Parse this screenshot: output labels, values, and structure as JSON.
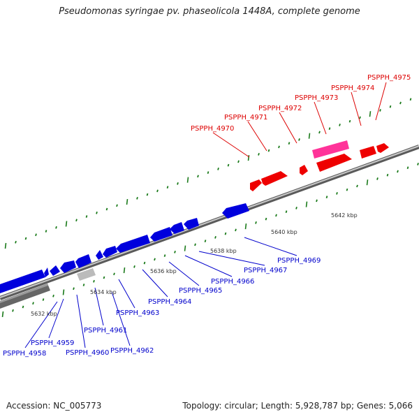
{
  "title": "Pseudomonas syringae pv. phaseolicola 1448A, complete genome",
  "footer": {
    "accession": "Accession: NC_005773",
    "summary": "Topology: circular; Length: 5,928,787 bp; Genes: 5,066"
  },
  "colors": {
    "forward_gene": "#ff0000",
    "forward_highlight": "#ff3399",
    "reverse_gene": "#0000ee",
    "pseudo_gene": "#bbbbbb",
    "backbone": "#777777",
    "tick": "#1a7a1a"
  },
  "scale_labels": [
    "5632 kbp",
    "5634 kbp",
    "5636 kbp",
    "5638 kbp",
    "5640 kbp",
    "5642 kbp"
  ],
  "forward_labels": [
    "PSPPH_4970",
    "PSPPH_4971",
    "PSPPH_4972",
    "PSPPH_4973",
    "PSPPH_4974",
    "PSPPH_4975"
  ],
  "reverse_labels": [
    "PSPPH_4958",
    "PSPPH_4959",
    "PSPPH_4960",
    "PSPPH_4961",
    "PSPPH_4962",
    "PSPPH_4963",
    "PSPPH_4964",
    "PSPPH_4965",
    "PSPPH_4966",
    "PSPPH_4967",
    "PSPPH_4969"
  ]
}
